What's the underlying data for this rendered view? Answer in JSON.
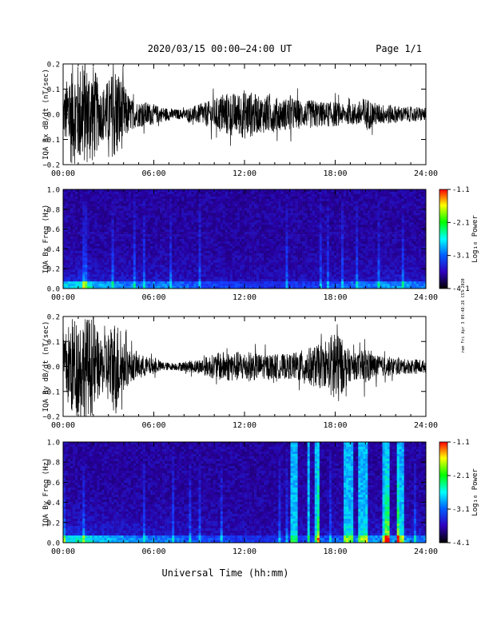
{
  "header": {
    "title": "2020/03/15  00:00–24:00 UT",
    "page": "Page 1/1"
  },
  "footer": {
    "xlabel": "Universal Time (hh:mm)"
  },
  "side_note": "rem Fri Apr 3 09:48:26 CST 2020",
  "colorbar": {
    "label": "Log₁₀ Power",
    "ticks": [
      "-1.1",
      "-2.1",
      "-3.1",
      "-4.1"
    ],
    "colors": [
      "#ff0000",
      "#ffff00",
      "#00ff00",
      "#00ffff",
      "#0060ff",
      "#3000c0",
      "#000000"
    ]
  },
  "chart_data": [
    {
      "type": "line",
      "title": "",
      "ylabel": "IQA Bx dB/dt (nT/sec)",
      "xlabel": "",
      "x_ticks": [
        "00:00",
        "06:00",
        "12:00",
        "18:00",
        "24:00"
      ],
      "y_ticks": [
        "0.2",
        "0.1",
        "0.0",
        "−0.1",
        "−0.2"
      ],
      "xlim": [
        0,
        24
      ],
      "ylim": [
        -0.2,
        0.2
      ],
      "series": [
        {
          "x": [
            0,
            0.5,
            1,
            1.5,
            2,
            2.5,
            3,
            3.5,
            4,
            4.5,
            5,
            5.5,
            6,
            6.5,
            7,
            7.5,
            8,
            8.5,
            9,
            9.5,
            10,
            10.5,
            11,
            11.5,
            12,
            12.5,
            13,
            13.5,
            14,
            14.5,
            15,
            15.5,
            16,
            16.5,
            17,
            17.5,
            18,
            18.5,
            19,
            19.5,
            20,
            20.5,
            21,
            21.5,
            22,
            22.5,
            23,
            23.5,
            24
          ],
          "envelope": [
            0.08,
            0.2,
            0.2,
            0.2,
            0.2,
            0.1,
            0.14,
            0.2,
            0.12,
            0.06,
            0.05,
            0.05,
            0.04,
            0.03,
            0.025,
            0.02,
            0.02,
            0.03,
            0.04,
            0.05,
            0.06,
            0.08,
            0.09,
            0.08,
            0.1,
            0.09,
            0.07,
            0.08,
            0.07,
            0.06,
            0.07,
            0.06,
            0.05,
            0.06,
            0.05,
            0.05,
            0.05,
            0.04,
            0.04,
            0.05,
            0.07,
            0.05,
            0.04,
            0.04,
            0.035,
            0.03,
            0.03,
            0.03,
            0.025
          ]
        }
      ]
    },
    {
      "type": "heatmap",
      "title": "",
      "ylabel": "IQA Bx Freq (Hz)",
      "xlabel": "",
      "x_ticks": [
        "00:00",
        "06:00",
        "12:00",
        "18:00",
        "24:00"
      ],
      "y_ticks": [
        "1.0",
        "0.8",
        "0.6",
        "0.4",
        "0.2",
        "0.0"
      ],
      "xlim": [
        0,
        24
      ],
      "ylim": [
        0,
        1.0
      ],
      "zlim": [
        -4.1,
        -1.1
      ],
      "activity": [
        0.7,
        0.8,
        0.6,
        0.55,
        0.5,
        0.45,
        0.5,
        0.45,
        0.4,
        0.35,
        0.35,
        0.3,
        0.3,
        0.25,
        0.25,
        0.3,
        0.3,
        0.35,
        0.4,
        0.45,
        0.5,
        0.55,
        0.55,
        0.5
      ],
      "bright_bands": []
    },
    {
      "type": "line",
      "title": "",
      "ylabel": "IQA By dB/dt (nT/sec)",
      "xlabel": "",
      "x_ticks": [
        "00:00",
        "06:00",
        "12:00",
        "18:00",
        "24:00"
      ],
      "y_ticks": [
        "0.2",
        "0.1",
        "0.0",
        "−0.1",
        "−0.2"
      ],
      "xlim": [
        0,
        24
      ],
      "ylim": [
        -0.2,
        0.2
      ],
      "series": [
        {
          "x": [
            0,
            0.5,
            1,
            1.5,
            2,
            2.5,
            3,
            3.5,
            4,
            4.5,
            5,
            5.5,
            6,
            6.5,
            7,
            7.5,
            8,
            8.5,
            9,
            9.5,
            10,
            10.5,
            11,
            11.5,
            12,
            12.5,
            13,
            13.5,
            14,
            14.5,
            15,
            15.5,
            16,
            16.5,
            17,
            17.5,
            18,
            18.5,
            19,
            19.5,
            20,
            20.5,
            21,
            21.5,
            22,
            22.5,
            23,
            23.5,
            24
          ],
          "envelope": [
            0.1,
            0.2,
            0.2,
            0.2,
            0.2,
            0.1,
            0.15,
            0.2,
            0.1,
            0.06,
            0.05,
            0.04,
            0.03,
            0.02,
            0.015,
            0.015,
            0.02,
            0.025,
            0.03,
            0.04,
            0.05,
            0.06,
            0.06,
            0.06,
            0.06,
            0.06,
            0.05,
            0.05,
            0.05,
            0.05,
            0.05,
            0.06,
            0.07,
            0.08,
            0.09,
            0.07,
            0.2,
            0.1,
            0.06,
            0.05,
            0.08,
            0.05,
            0.04,
            0.04,
            0.035,
            0.03,
            0.03,
            0.03,
            0.025
          ]
        }
      ]
    },
    {
      "type": "heatmap",
      "title": "",
      "ylabel": "IQA By Freq (Hz)",
      "xlabel": "",
      "x_ticks": [
        "00:00",
        "06:00",
        "12:00",
        "18:00",
        "24:00"
      ],
      "y_ticks": [
        "1.0",
        "0.8",
        "0.6",
        "0.4",
        "0.2",
        "0.0"
      ],
      "xlim": [
        0,
        24
      ],
      "ylim": [
        0,
        1.0
      ],
      "zlim": [
        -4.1,
        -1.1
      ],
      "activity": [
        0.75,
        0.8,
        0.65,
        0.6,
        0.55,
        0.5,
        0.5,
        0.45,
        0.4,
        0.35,
        0.35,
        0.3,
        0.3,
        0.25,
        0.3,
        0.3,
        0.35,
        0.4,
        0.45,
        0.5,
        0.55,
        0.55,
        0.55,
        0.5
      ],
      "bright_bands": [
        [
          15.1,
          15.6
        ],
        [
          16.1,
          16.3
        ],
        [
          16.6,
          16.9
        ],
        [
          18.5,
          19.2
        ],
        [
          19.6,
          20.1
        ],
        [
          21.1,
          21.6
        ],
        [
          22.1,
          22.6
        ]
      ]
    }
  ]
}
